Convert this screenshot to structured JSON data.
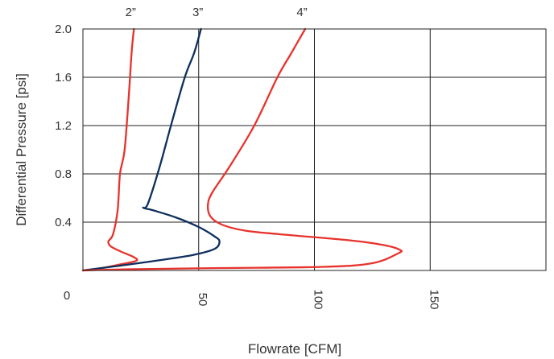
{
  "chart_data": {
    "type": "line",
    "xlabel": "Flowrate [CFM]",
    "ylabel": "Differential Pressure [psi]",
    "xlim": [
      0,
      200
    ],
    "ylim": [
      0,
      2.0
    ],
    "x_ticks": [
      50,
      100,
      150
    ],
    "x_tick_labels": [
      "50",
      "100",
      "150"
    ],
    "x_origin_label": "0",
    "y_ticks": [
      0.4,
      0.8,
      1.2,
      1.6,
      2.0
    ],
    "y_tick_labels": [
      "0.4",
      "0.8",
      "1.2",
      "1.6",
      "2.0"
    ],
    "grid": true,
    "series": [
      {
        "name": "2”",
        "color": "#e8322c",
        "points": [
          [
            22,
            2.0
          ],
          [
            21,
            1.8
          ],
          [
            20,
            1.5
          ],
          [
            18,
            1.0
          ],
          [
            16,
            0.8
          ],
          [
            15,
            0.5
          ],
          [
            13,
            0.3
          ],
          [
            11,
            0.24
          ],
          [
            12,
            0.2
          ],
          [
            16,
            0.16
          ],
          [
            22,
            0.11
          ],
          [
            23,
            0.08
          ],
          [
            16,
            0.05
          ],
          [
            8,
            0.02
          ],
          [
            0,
            0.0
          ]
        ]
      },
      {
        "name": "3”",
        "color": "#0e2f5e",
        "points": [
          [
            51,
            2.0
          ],
          [
            48,
            1.8
          ],
          [
            44,
            1.6
          ],
          [
            38,
            1.2
          ],
          [
            33,
            0.85
          ],
          [
            28,
            0.55
          ],
          [
            26,
            0.52
          ],
          [
            30,
            0.5
          ],
          [
            40,
            0.44
          ],
          [
            50,
            0.36
          ],
          [
            57,
            0.28
          ],
          [
            59,
            0.24
          ],
          [
            57,
            0.18
          ],
          [
            48,
            0.13
          ],
          [
            35,
            0.09
          ],
          [
            20,
            0.05
          ],
          [
            8,
            0.02
          ],
          [
            0,
            0.0
          ]
        ]
      },
      {
        "name": "4”",
        "color": "#e8322c",
        "points": [
          [
            96,
            2.0
          ],
          [
            90,
            1.8
          ],
          [
            84,
            1.6
          ],
          [
            74,
            1.2
          ],
          [
            63,
            0.85
          ],
          [
            56,
            0.65
          ],
          [
            54,
            0.55
          ],
          [
            55,
            0.45
          ],
          [
            60,
            0.38
          ],
          [
            70,
            0.33
          ],
          [
            85,
            0.3
          ],
          [
            115,
            0.25
          ],
          [
            130,
            0.21
          ],
          [
            137,
            0.17
          ],
          [
            136,
            0.14
          ],
          [
            125,
            0.06
          ],
          [
            104,
            0.03
          ],
          [
            60,
            0.02
          ],
          [
            20,
            0.01
          ],
          [
            0,
            0.0
          ]
        ]
      }
    ]
  }
}
